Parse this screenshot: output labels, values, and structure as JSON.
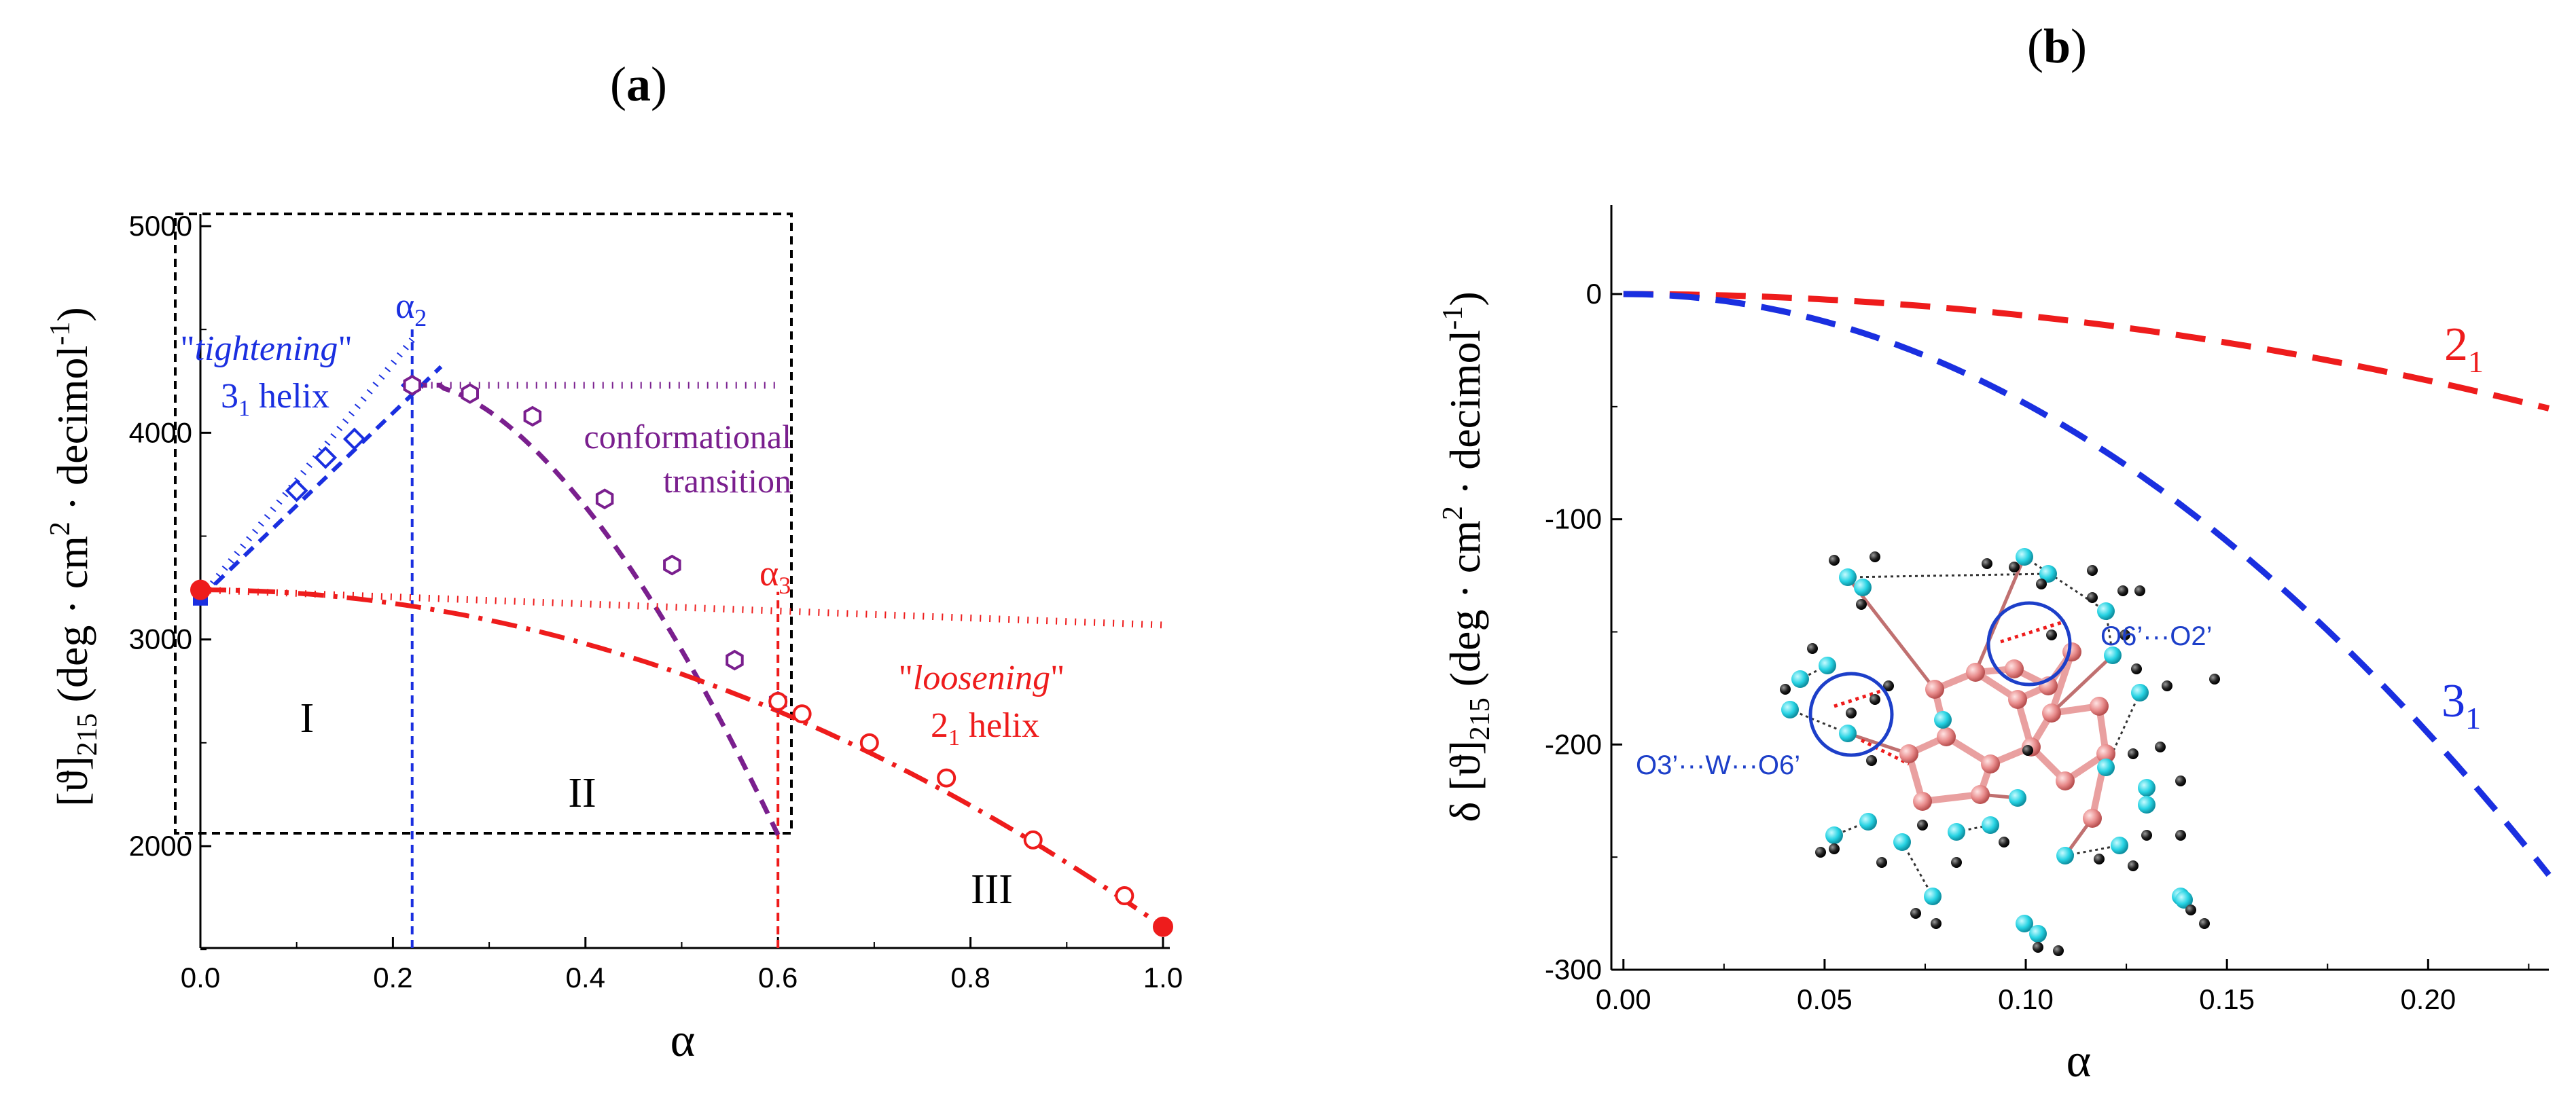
{
  "colors": {
    "blue": "#1a2fe0",
    "purple": "#7a1f8e",
    "red": "#ee1c1c",
    "black": "#000000",
    "atom_cyan": "#27d3e3",
    "atom_black": "#222222",
    "atom_red": "#e08080",
    "circle_blue": "#1d3fc9"
  },
  "panel_a": {
    "label_open": "(",
    "label_letter": "a",
    "label_close": ")",
    "xlabel": "α",
    "ylabel": "[ϑ]",
    "ylabel_sub": "215",
    "ylabel_units": "(deg · cm",
    "ylabel_sup1": "2",
    "ylabel_units2": " · decimol",
    "ylabel_sup2": "-1",
    "ylabel_close": ")",
    "annotations": {
      "alpha2": "α",
      "alpha2_sub": "2",
      "alpha3": "α",
      "alpha3_sub": "3",
      "tightening_q1": "\"",
      "tightening": "tightening",
      "tightening_q2": "\"",
      "helix31_num": "3",
      "helix31_sub": "1",
      "helix31_word": " helix",
      "conformational": "conformational",
      "transition": "transition",
      "loosening_q1": "\"",
      "loosening": "loosening",
      "loosening_q2": "\"",
      "helix21_num": "2",
      "helix21_sub": "1",
      "helix21_word": " helix",
      "region1": "I",
      "region2": "II",
      "region3": "III"
    }
  },
  "panel_b": {
    "label_open": "(",
    "label_letter": "b",
    "label_close": ")",
    "xlabel": "α",
    "ylabel": "δ [ϑ]",
    "ylabel_sub": "215",
    "ylabel_units": " (deg · cm",
    "ylabel_sup1": "2",
    "ylabel_units2": " · decimol",
    "ylabel_sup2": "-1",
    "ylabel_close": ")",
    "curve21_num": "2",
    "curve21_sub": "1",
    "curve31_num": "3",
    "curve31_sub": "1",
    "bond1": "O6’···O2’",
    "bond2": "O3’···W···O6’"
  },
  "chart_data": [
    {
      "type": "scatter",
      "panel": "a",
      "xlabel": "α",
      "ylabel": "[ϑ]215 (deg · cm2 · decimol-1)",
      "xlim": [
        0.0,
        1.0
      ],
      "ylim": [
        1500,
        5100
      ],
      "xticks": [
        "0.0",
        "0.2",
        "0.4",
        "0.6",
        "0.8",
        "1.0"
      ],
      "yticks": [
        "2000",
        "3000",
        "4000",
        "5000"
      ],
      "series": [
        {
          "name": "3_1 helix",
          "marker": "diamond",
          "x": [
            0.0,
            0.1,
            0.13,
            0.16,
            0.22
          ],
          "y": [
            3200,
            3720,
            3880,
            3970,
            4230
          ]
        },
        {
          "name": "conformational transition",
          "marker": "hexagon",
          "x": [
            0.22,
            0.28,
            0.345,
            0.42,
            0.49,
            0.555,
            0.6
          ],
          "y": [
            4230,
            4190,
            4080,
            3680,
            3360,
            2900,
            2700
          ]
        },
        {
          "name": "2_1 helix",
          "marker": "circle",
          "x": [
            0.0,
            0.6,
            0.625,
            0.695,
            0.775,
            0.865,
            0.96,
            1.0
          ],
          "y": [
            3240,
            2700,
            2640,
            2500,
            2330,
            2030,
            1760,
            1610
          ]
        }
      ],
      "reference_lines": [
        {
          "name": "3_1 helix dotted",
          "x": [
            0.0,
            0.22
          ],
          "y": [
            3200,
            4450
          ]
        },
        {
          "name": "3_1 helix dashed",
          "x": [
            0.0,
            0.25
          ],
          "y": [
            3200,
            4320
          ]
        },
        {
          "name": "transition plateau",
          "x": [
            0.22,
            0.6
          ],
          "y": [
            4230,
            4230
          ]
        },
        {
          "name": "2_1 helix dotted",
          "x": [
            0.0,
            1.0
          ],
          "y": [
            3240,
            3070
          ]
        },
        {
          "name": "2_1 helix dash-dot",
          "x": [
            0.0,
            1.0
          ],
          "y": [
            3240,
            1610
          ]
        },
        {
          "name": "alpha2",
          "x": [
            0.22,
            0.22
          ],
          "y": [
            1500,
            4500
          ]
        },
        {
          "name": "alpha3",
          "x": [
            0.6,
            0.6
          ],
          "y": [
            1500,
            3230
          ]
        }
      ],
      "vertical_markers": {
        "alpha2": 0.22,
        "alpha3": 0.6
      }
    },
    {
      "type": "line",
      "panel": "b",
      "xlabel": "α",
      "ylabel": "δ [ϑ]215 (deg · cm2 · decimol-1)",
      "xlim": [
        -0.003,
        0.23
      ],
      "ylim": [
        -300,
        40
      ],
      "xticks": [
        "0.00",
        "0.05",
        "0.10",
        "0.15",
        "0.20"
      ],
      "yticks": [
        "0",
        "-100",
        "-200",
        "-300"
      ],
      "series": [
        {
          "name": "2_1",
          "x": [
            0.0,
            0.05,
            0.1,
            0.15,
            0.2,
            0.23
          ],
          "y": [
            0,
            -2.4,
            -9.6,
            -21.6,
            -38.4,
            -50.8
          ]
        },
        {
          "name": "3_1",
          "x": [
            0.0,
            0.05,
            0.1,
            0.15,
            0.2,
            0.23
          ],
          "y": [
            0,
            -12,
            -49,
            -110,
            -195,
            -258
          ]
        }
      ]
    }
  ]
}
